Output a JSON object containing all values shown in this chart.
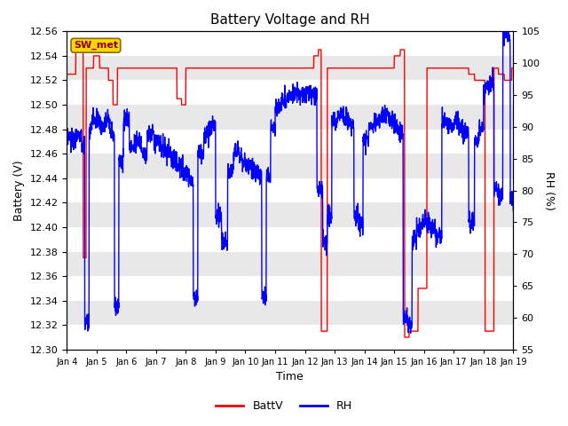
{
  "title": "Battery Voltage and RH",
  "xlabel": "Time",
  "ylabel_left": "Battery (V)",
  "ylabel_right": "RH (%)",
  "ylim_left": [
    12.3,
    12.56
  ],
  "ylim_right": [
    55,
    105
  ],
  "yticks_left": [
    12.3,
    12.32,
    12.34,
    12.36,
    12.38,
    12.4,
    12.42,
    12.44,
    12.46,
    12.48,
    12.5,
    12.52,
    12.54,
    12.56
  ],
  "yticks_right": [
    55,
    60,
    65,
    70,
    75,
    80,
    85,
    90,
    95,
    100,
    105
  ],
  "xtick_labels": [
    "Jan 4",
    "Jan 5",
    "Jan 6",
    "Jan 7",
    "Jan 8",
    "Jan 9",
    "Jan 10",
    "Jan 11",
    "Jan 12",
    "Jan 13",
    "Jan 14",
    "Jan 15",
    "Jan 16",
    "Jan 17",
    "Jan 18",
    "Jan 19"
  ],
  "station_label": "SW_met",
  "color_battv": "#FF0000",
  "color_rh": "#0000FF",
  "legend_labels": [
    "BattV",
    "RH"
  ],
  "bg_color": "#E8E8E8",
  "stripe_color": "#FFFFFF",
  "title_fontsize": 11,
  "axis_fontsize": 9,
  "tick_fontsize": 8,
  "legend_fontsize": 9,
  "line_width": 1.0,
  "num_days": 15,
  "pts_per_day": 144
}
